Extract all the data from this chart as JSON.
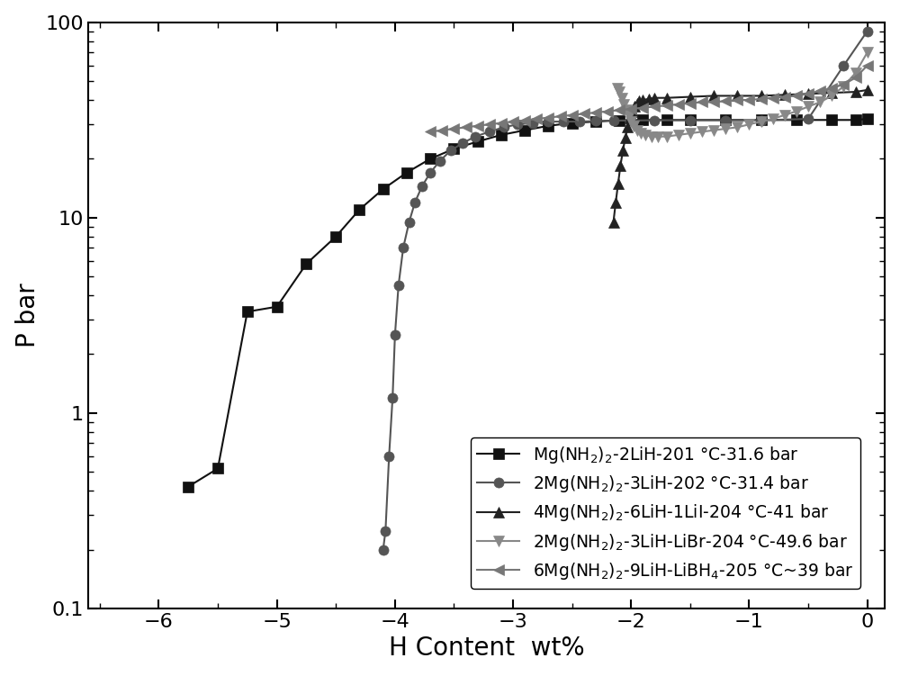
{
  "series": [
    {
      "label": "Mg(NH$_2$)$_2$-2LiH-201 °C-31.6 bar",
      "color": "#111111",
      "marker": "s",
      "markersize": 8,
      "linewidth": 1.5,
      "segments": [
        {
          "x": [
            -5.75,
            -5.5,
            -5.25,
            -5.0,
            -4.75,
            -4.5,
            -4.3,
            -4.1,
            -3.9,
            -3.7,
            -3.5,
            -3.3,
            -3.1,
            -2.9,
            -2.7,
            -2.5,
            -2.3,
            -2.1,
            -1.9,
            -1.7,
            -1.5,
            -1.2,
            -0.9,
            -0.6,
            -0.3,
            -0.1,
            0.0
          ],
          "y": [
            0.42,
            0.52,
            3.3,
            3.5,
            5.8,
            8.0,
            11.0,
            14.0,
            17.0,
            20.0,
            22.5,
            24.5,
            26.5,
            28.0,
            29.5,
            30.5,
            31.0,
            31.5,
            31.6,
            31.6,
            31.6,
            31.6,
            31.6,
            31.6,
            31.6,
            31.6,
            32.0
          ]
        }
      ]
    },
    {
      "label": "2Mg(NH$_2$)$_2$-3LiH-202 °C-31.4 bar",
      "color": "#555555",
      "marker": "o",
      "markersize": 8,
      "linewidth": 1.5,
      "segments": [
        {
          "x": [
            -4.1,
            -4.08,
            -4.05,
            -4.02,
            -4.0,
            -3.97,
            -3.93,
            -3.88,
            -3.83,
            -3.77,
            -3.7,
            -3.62,
            -3.53,
            -3.43,
            -3.32,
            -3.2,
            -3.08,
            -2.96,
            -2.83,
            -2.7,
            -2.57,
            -2.44,
            -2.3,
            -2.15,
            -2.0,
            -1.8,
            -1.5,
            -1.2,
            -0.9,
            -0.5,
            -0.2,
            0.0
          ],
          "y": [
            0.2,
            0.25,
            0.6,
            1.2,
            2.5,
            4.5,
            7.0,
            9.5,
            12.0,
            14.5,
            17.0,
            19.5,
            22.0,
            24.0,
            26.0,
            27.5,
            29.0,
            30.0,
            30.5,
            31.0,
            31.0,
            31.0,
            31.2,
            31.4,
            31.4,
            31.5,
            31.5,
            31.5,
            31.5,
            32.0,
            60.0,
            90.0
          ]
        }
      ]
    },
    {
      "label": "4Mg(NH$_2$)$_2$-6LiH-1LiI-204 °C-41 bar",
      "color": "#222222",
      "marker": "^",
      "markersize": 8,
      "linewidth": 1.5,
      "segments": [
        {
          "x": [
            -2.15,
            -2.13,
            -2.11,
            -2.09,
            -2.07,
            -2.05,
            -2.03,
            -2.01,
            -1.99,
            -1.97,
            -1.95,
            -1.93,
            -1.9,
            -1.85,
            -1.8,
            -1.7,
            -1.5,
            -1.3,
            -1.1,
            -0.9,
            -0.7,
            -0.5,
            -0.3,
            -0.1,
            0.0
          ],
          "y": [
            9.5,
            12.0,
            15.0,
            18.5,
            22.0,
            25.5,
            29.0,
            32.5,
            35.0,
            37.0,
            38.5,
            39.5,
            40.0,
            40.5,
            41.0,
            41.0,
            41.5,
            42.0,
            42.0,
            42.0,
            42.5,
            43.0,
            43.5,
            44.0,
            45.0
          ]
        }
      ]
    },
    {
      "label": "2Mg(NH$_2$)$_2$-3LiH-LiBr-204 °C-49.6 bar",
      "color": "#888888",
      "marker": "v",
      "markersize": 8,
      "linewidth": 1.5,
      "segments": [
        {
          "x": [
            -2.12,
            -2.1,
            -2.08,
            -2.06,
            -2.04,
            -2.02,
            -2.0,
            -1.98,
            -1.95,
            -1.92,
            -1.88,
            -1.83,
            -1.77,
            -1.7,
            -1.6,
            -1.5,
            -1.4,
            -1.3,
            -1.2,
            -1.1,
            -1.0,
            -0.9,
            -0.8,
            -0.7,
            -0.6,
            -0.5,
            -0.4,
            -0.3,
            -0.2,
            -0.1,
            0.0
          ],
          "y": [
            46.0,
            44.0,
            41.0,
            38.0,
            35.5,
            33.0,
            31.0,
            29.5,
            28.0,
            27.0,
            26.5,
            26.0,
            26.0,
            26.0,
            26.5,
            27.0,
            27.5,
            28.0,
            28.5,
            29.0,
            30.0,
            31.0,
            32.0,
            33.5,
            35.0,
            37.0,
            39.0,
            42.0,
            47.0,
            55.0,
            70.0
          ]
        }
      ]
    },
    {
      "label": "6Mg(NH$_2$)$_2$-9LiH-LiBH$_4$-205 °C~39 bar",
      "color": "#777777",
      "marker": "<",
      "markersize": 8,
      "linewidth": 1.5,
      "segments": [
        {
          "x": [
            -3.7,
            -3.6,
            -3.5,
            -3.4,
            -3.3,
            -3.2,
            -3.1,
            -3.0,
            -2.9,
            -2.8,
            -2.7,
            -2.6,
            -2.5,
            -2.4,
            -2.3,
            -2.2,
            -2.1,
            -2.0,
            -1.9,
            -1.8,
            -1.7,
            -1.6,
            -1.5,
            -1.4,
            -1.3,
            -1.2,
            -1.1,
            -1.0,
            -0.9,
            -0.8,
            -0.7,
            -0.6,
            -0.5,
            -0.4,
            -0.3,
            -0.2,
            -0.1,
            0.0
          ],
          "y": [
            27.5,
            28.0,
            28.5,
            29.0,
            29.5,
            30.0,
            30.5,
            31.0,
            31.5,
            32.0,
            32.5,
            33.0,
            33.5,
            34.0,
            34.5,
            35.0,
            35.5,
            36.0,
            36.5,
            37.0,
            37.5,
            38.0,
            38.5,
            39.0,
            39.0,
            39.5,
            40.0,
            40.0,
            40.5,
            41.0,
            41.5,
            42.0,
            43.0,
            44.5,
            46.0,
            48.0,
            52.0,
            60.0
          ]
        }
      ]
    }
  ],
  "xlim": [
    -6.6,
    0.15
  ],
  "ylim_log": [
    0.1,
    100
  ],
  "xlabel": "H Content  wt%",
  "ylabel": "P bar",
  "xticks": [
    -6,
    -5,
    -4,
    -3,
    -2,
    -1,
    0
  ],
  "background": "#ffffff",
  "legend_fontsize": 13.5,
  "axis_labelsize": 20,
  "tick_labelsize": 16
}
